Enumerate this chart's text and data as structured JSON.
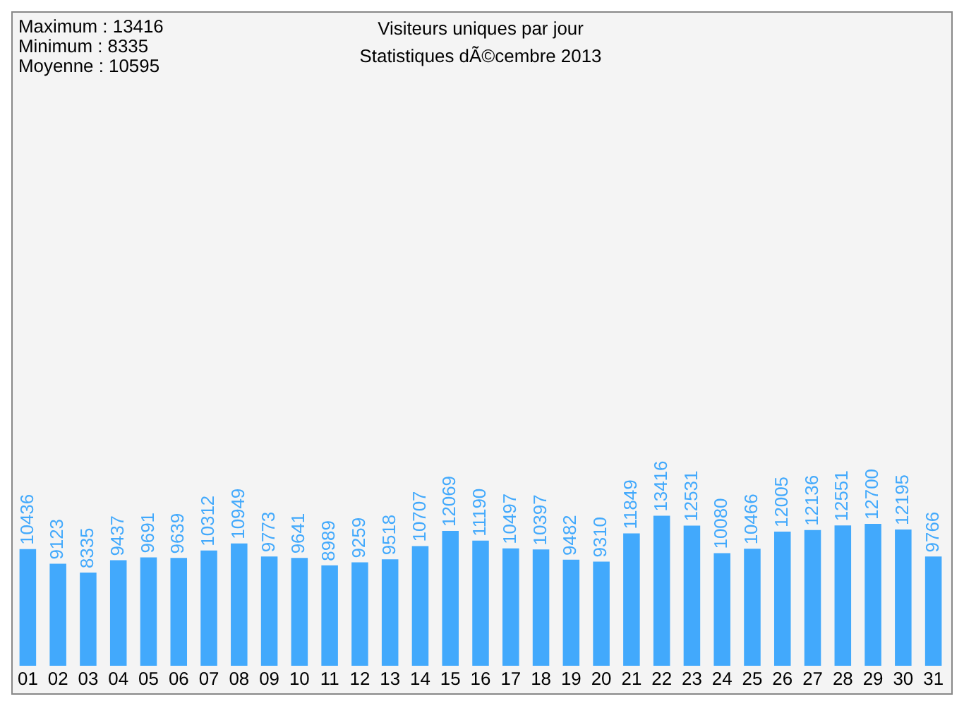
{
  "chart_data": {
    "type": "bar",
    "title": "Visiteurs uniques par jour",
    "subtitle": "Statistiques dÃ©cembre 2013",
    "annotations": [
      "Maximum : 13416",
      "Minimum : 8335",
      "Moyenne : 10595"
    ],
    "categories": [
      "01",
      "02",
      "03",
      "04",
      "05",
      "06",
      "07",
      "08",
      "09",
      "10",
      "11",
      "12",
      "13",
      "14",
      "15",
      "16",
      "17",
      "18",
      "19",
      "20",
      "21",
      "22",
      "23",
      "24",
      "25",
      "26",
      "27",
      "28",
      "29",
      "30",
      "31"
    ],
    "values": [
      10436,
      9123,
      8335,
      9437,
      9691,
      9639,
      10312,
      10949,
      9773,
      9641,
      8989,
      9259,
      9518,
      10707,
      12069,
      11190,
      10497,
      10397,
      9482,
      9310,
      11849,
      13416,
      12531,
      10080,
      10466,
      12005,
      12136,
      12551,
      12700,
      12195,
      9766
    ],
    "color": "#42a9fc",
    "data_labels": true,
    "grid": false,
    "legend": false
  }
}
